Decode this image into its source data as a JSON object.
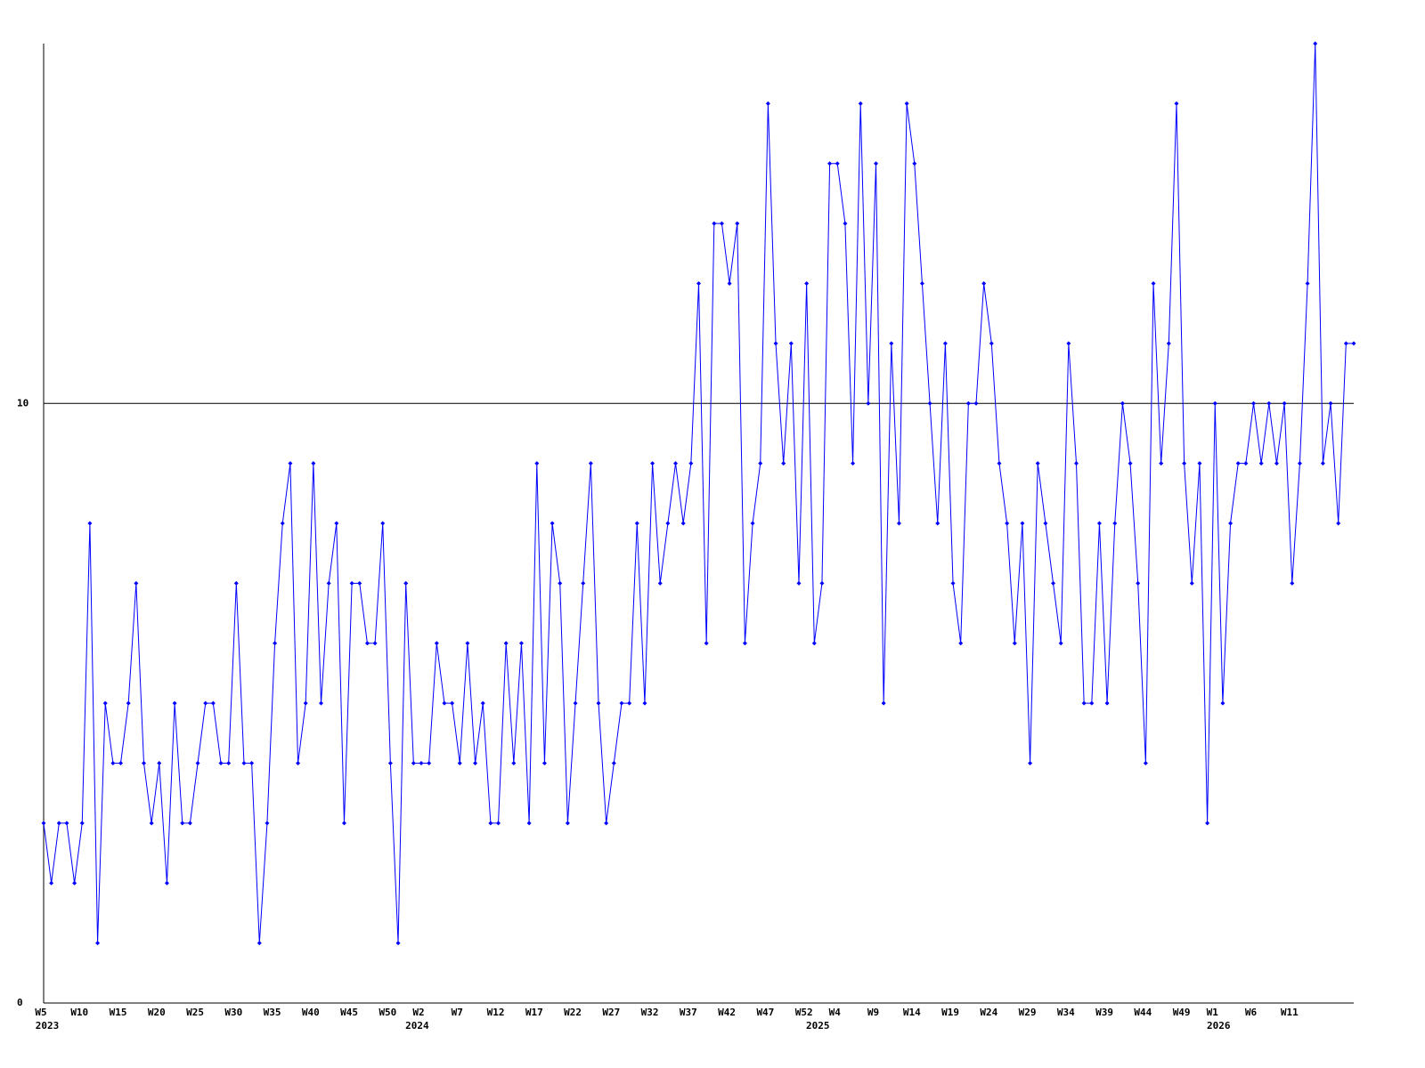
{
  "chart_data": {
    "type": "line",
    "categories": [
      "W5",
      null,
      null,
      null,
      null,
      "W10",
      null,
      null,
      null,
      null,
      "W15",
      null,
      null,
      null,
      null,
      "W20",
      null,
      null,
      null,
      null,
      "W25",
      null,
      null,
      null,
      null,
      "W30",
      null,
      null,
      null,
      null,
      "W35",
      null,
      null,
      null,
      null,
      "W40",
      null,
      null,
      null,
      null,
      "W45",
      null,
      null,
      null,
      null,
      "W50",
      null,
      null,
      null,
      "W2",
      null,
      null,
      null,
      null,
      "W7",
      null,
      null,
      null,
      null,
      "W12",
      null,
      null,
      null,
      null,
      "W17",
      null,
      null,
      null,
      null,
      "W22",
      null,
      null,
      null,
      null,
      "W27",
      null,
      null,
      null,
      null,
      "W32",
      null,
      null,
      null,
      null,
      "W37",
      null,
      null,
      null,
      null,
      "W42",
      null,
      null,
      null,
      null,
      "W47",
      null,
      null,
      null,
      null,
      "W52",
      null,
      null,
      null,
      "W4",
      null,
      null,
      null,
      null,
      "W9",
      null,
      null,
      null,
      null,
      "W14",
      null,
      null,
      null,
      null,
      "W19",
      null,
      null,
      null,
      null,
      "W24",
      null,
      null,
      null,
      null,
      "W29",
      null,
      null,
      null,
      null,
      "W34",
      null,
      null,
      null,
      null,
      "W39",
      null,
      null,
      null,
      null,
      "W44",
      null,
      null,
      null,
      null,
      "W49",
      null,
      null,
      null,
      "W1",
      null,
      null,
      null,
      null,
      "W6",
      null,
      null,
      null,
      null,
      "W11",
      null,
      null,
      null,
      null,
      null,
      null,
      null,
      null
    ],
    "years": [
      "2023",
      null,
      null,
      null,
      null,
      null,
      null,
      null,
      null,
      null,
      null,
      null,
      null,
      null,
      null,
      null,
      null,
      null,
      null,
      null,
      null,
      null,
      null,
      null,
      null,
      null,
      null,
      null,
      null,
      null,
      null,
      null,
      null,
      null,
      null,
      null,
      null,
      null,
      null,
      null,
      null,
      null,
      null,
      null,
      null,
      null,
      null,
      null,
      "2024",
      null,
      null,
      null,
      null,
      null,
      null,
      null,
      null,
      null,
      null,
      null,
      null,
      null,
      null,
      null,
      null,
      null,
      null,
      null,
      null,
      null,
      null,
      null,
      null,
      null,
      null,
      null,
      null,
      null,
      null,
      null,
      null,
      null,
      null,
      null,
      null,
      null,
      null,
      null,
      null,
      null,
      null,
      null,
      null,
      null,
      null,
      null,
      null,
      null,
      null,
      null,
      "2025",
      null,
      null,
      null,
      null,
      null,
      null,
      null,
      null,
      null,
      null,
      null,
      null,
      null,
      null,
      null,
      null,
      null,
      null,
      null,
      null,
      null,
      null,
      null,
      null,
      null,
      null,
      null,
      null,
      null,
      null,
      null,
      null,
      null,
      null,
      null,
      null,
      null,
      null,
      null,
      null,
      null,
      null,
      null,
      null,
      null,
      null,
      null,
      null,
      null,
      null,
      null,
      "2026",
      null,
      null,
      null,
      null,
      null,
      null,
      null,
      null,
      null,
      null,
      null,
      null,
      null,
      null,
      null,
      null,
      null,
      null
    ],
    "series": [
      {
        "color": "#0000ff",
        "values": [
          3,
          2,
          3,
          3,
          2,
          3,
          8,
          1,
          5,
          4,
          4,
          5,
          7,
          4,
          3,
          4,
          2,
          5,
          3,
          3,
          4,
          5,
          5,
          4,
          4,
          7,
          4,
          4,
          1,
          3,
          6,
          8,
          9,
          4,
          5,
          9,
          5,
          7,
          8,
          3,
          7,
          7,
          6,
          6,
          8,
          4,
          1,
          7,
          4,
          4,
          4,
          6,
          5,
          5,
          4,
          6,
          4,
          5,
          3,
          3,
          6,
          4,
          6,
          3,
          9,
          4,
          8,
          7,
          3,
          5,
          7,
          9,
          5,
          3,
          4,
          5,
          5,
          8,
          5,
          9,
          7,
          8,
          9,
          8,
          9,
          12,
          6,
          13,
          13,
          12,
          13,
          6,
          8,
          9,
          15,
          11,
          9,
          11,
          7,
          12,
          6,
          7,
          14,
          14,
          13,
          9,
          15,
          10,
          14,
          5,
          11,
          8,
          15,
          14,
          12,
          10,
          8,
          11,
          7,
          6,
          10,
          10,
          12,
          11,
          9,
          8,
          6,
          8,
          4,
          9,
          8,
          7,
          6,
          11,
          9,
          5,
          5,
          8,
          5,
          8,
          10,
          9,
          7,
          4,
          12,
          9,
          11,
          15,
          9,
          7,
          9,
          3,
          10,
          5,
          8,
          9,
          9,
          10,
          9,
          10,
          9,
          10,
          7,
          9,
          12,
          16,
          9,
          10,
          8,
          11,
          11
        ]
      }
    ],
    "ylim": [
      0,
      16
    ],
    "yticks": [
      0,
      10
    ],
    "grid": true
  }
}
